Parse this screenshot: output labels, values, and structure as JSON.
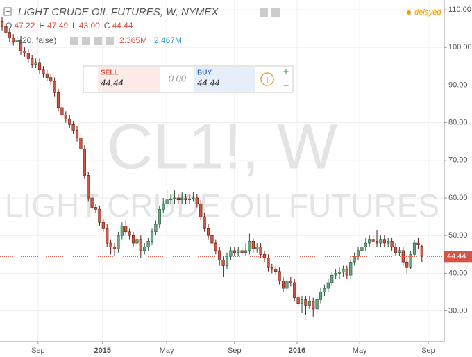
{
  "header": {
    "title": "LIGHT CRUDE OIL FUTURES, W, NYMEX",
    "status": "delayed",
    "ohlc": [
      {
        "key": "O",
        "value": "47.22"
      },
      {
        "key": "H",
        "value": "47.49"
      },
      {
        "key": "L",
        "value": "43.00"
      },
      {
        "key": "C",
        "value": "44.44"
      }
    ],
    "volume_params": "(20, false)",
    "volume_values": [
      "2.365M",
      "2.467M"
    ]
  },
  "trade_panel": {
    "sell_label": "SELL",
    "sell_price": "44.44",
    "spread": "0.00",
    "buy_label": "BUY",
    "buy_price": "44.44"
  },
  "watermark": {
    "symbol": "CL1!, W",
    "name": "LIGHT CRUDE OIL FUTURES"
  },
  "chart_data": {
    "type": "candlestick",
    "up_color": "#6ba583",
    "down_color": "#d75442",
    "last_price_label": "44.44",
    "last_price": 44.44,
    "xlim": [
      -0.56,
      117.96
    ],
    "xticks": [
      {
        "value": 9.6,
        "label": "Sep"
      },
      {
        "value": 26.8,
        "label": "2015"
      },
      {
        "value": 43.9,
        "label": "May"
      },
      {
        "value": 62,
        "label": "Sep"
      },
      {
        "value": 78.7,
        "label": "2016"
      },
      {
        "value": 95.4,
        "label": "May"
      },
      {
        "value": 113.7,
        "label": "Sep"
      }
    ],
    "ylim": [
      21.81,
      112.58
    ],
    "yticks": [
      {
        "value": 30,
        "label": "30.00"
      },
      {
        "value": 40,
        "label": "40.00"
      },
      {
        "value": 50,
        "label": "50.00"
      },
      {
        "value": 60,
        "label": "60.00"
      },
      {
        "value": 70,
        "label": "70.00"
      },
      {
        "value": 80,
        "label": "80.00"
      },
      {
        "value": 90,
        "label": "90.00"
      },
      {
        "value": 100,
        "label": "100.00"
      },
      {
        "value": 110,
        "label": "110.00"
      }
    ],
    "open": [
      107,
      105.5,
      104,
      102.5,
      101.5,
      102,
      99,
      98.5,
      97,
      95.5,
      96,
      94,
      93,
      92,
      91,
      88,
      84,
      82,
      81,
      79.5,
      78,
      76,
      73,
      66,
      60,
      57.5,
      57,
      53.5,
      52,
      48,
      47,
      46.5,
      50,
      52.5,
      51,
      50,
      48,
      49,
      46,
      47,
      48.5,
      51,
      53,
      57,
      58.5,
      59.5,
      59.8,
      60,
      59.5,
      60,
      59.5,
      59.8,
      60,
      58.5,
      55,
      52,
      50,
      48,
      46,
      43.5,
      42,
      44.5,
      46,
      45.5,
      46,
      45.5,
      46,
      48.5,
      46.5,
      47,
      45,
      44,
      41.5,
      41,
      40.5,
      38,
      36,
      38,
      37.5,
      33.5,
      32,
      33,
      31.5,
      32.5,
      30.5,
      33,
      35,
      36,
      37.5,
      39.5,
      40,
      40.3,
      41,
      39.5,
      43,
      44.5,
      46,
      47,
      48,
      49,
      48.5,
      48,
      49,
      48,
      48.5,
      47,
      45.5,
      46,
      43,
      41.5,
      45,
      48,
      47.22
    ],
    "high": [
      108,
      106.5,
      105,
      103.5,
      103,
      103,
      100,
      99.5,
      98,
      97,
      97,
      95,
      94,
      93,
      92,
      89,
      85,
      83,
      82,
      80.5,
      79,
      77,
      74,
      67,
      61,
      58.5,
      58,
      54.5,
      53,
      49,
      48,
      51,
      53.5,
      54,
      52,
      51,
      50,
      50,
      48,
      49.5,
      52,
      54,
      58,
      60,
      62,
      61,
      62,
      61,
      61.5,
      61,
      61,
      61.5,
      61,
      59.5,
      56,
      53,
      51,
      49,
      47,
      44.5,
      45.5,
      47,
      47,
      47,
      47,
      48,
      50.5,
      49.5,
      48,
      48,
      46,
      45,
      42.5,
      42,
      41.5,
      39,
      39,
      39,
      38.5,
      34.5,
      34,
      34,
      34,
      33.5,
      34,
      36,
      37,
      38.5,
      40.5,
      41,
      41.5,
      42,
      42,
      44,
      45.5,
      47,
      48,
      49.5,
      50,
      50,
      51.5,
      50,
      50,
      49.5,
      49.5,
      48,
      47,
      47,
      44,
      46,
      49,
      49.5,
      47.49
    ],
    "low": [
      104.5,
      103,
      101.5,
      100.5,
      100.5,
      98,
      97.5,
      96,
      94.5,
      94.5,
      93,
      92,
      91,
      90,
      87,
      83,
      81,
      80,
      78.5,
      77,
      75,
      72,
      65,
      59,
      56.5,
      56,
      52.5,
      51,
      47,
      45,
      44.5,
      45.5,
      49,
      50,
      49,
      47,
      47,
      44,
      45,
      46,
      47.5,
      50,
      52,
      56,
      57.5,
      58.5,
      58.5,
      58.5,
      58.5,
      58.5,
      58.5,
      59,
      57.5,
      54,
      51,
      49,
      47,
      45,
      42,
      39,
      41,
      43.5,
      44.5,
      44.5,
      44.5,
      44.5,
      45,
      45.5,
      45.5,
      44,
      43,
      40.5,
      40,
      39.5,
      37,
      35,
      35,
      36.5,
      32.5,
      31,
      29.5,
      29,
      30.5,
      28.5,
      29.5,
      32,
      34,
      35,
      36.5,
      38.5,
      38.5,
      39,
      38.5,
      38.5,
      42,
      43.5,
      45,
      46,
      47,
      47.5,
      47,
      47,
      47,
      47,
      46,
      44.5,
      44.5,
      42,
      40,
      41,
      44.5,
      46.5,
      43
    ],
    "close": [
      105.5,
      104,
      102.5,
      101.5,
      102,
      99,
      98.5,
      97,
      95.5,
      96,
      94,
      93,
      92,
      91,
      88,
      84,
      82,
      81,
      79.5,
      78,
      76,
      73,
      66,
      60,
      57.5,
      57,
      53.5,
      52,
      48,
      47,
      46.5,
      50,
      52.5,
      51,
      50,
      48,
      49,
      46,
      47,
      48.5,
      51,
      53,
      57,
      58.5,
      59.5,
      59.8,
      60,
      59.5,
      60,
      59.5,
      59.8,
      60,
      58.5,
      55,
      52,
      50,
      48,
      46,
      43.5,
      42,
      44.5,
      46,
      45.5,
      46,
      45.5,
      46,
      48.5,
      46.5,
      47,
      45,
      44,
      41.5,
      41,
      40.5,
      38,
      36,
      38,
      37.5,
      33.5,
      32,
      33,
      31.5,
      32.5,
      30.5,
      33,
      35,
      36,
      37.5,
      39.5,
      40,
      40.3,
      41,
      39.5,
      43,
      44.5,
      46,
      47,
      48,
      49,
      48.5,
      48,
      49,
      48,
      48.5,
      47,
      45.5,
      46,
      43,
      41.5,
      45,
      48,
      47.5,
      44.44
    ]
  }
}
